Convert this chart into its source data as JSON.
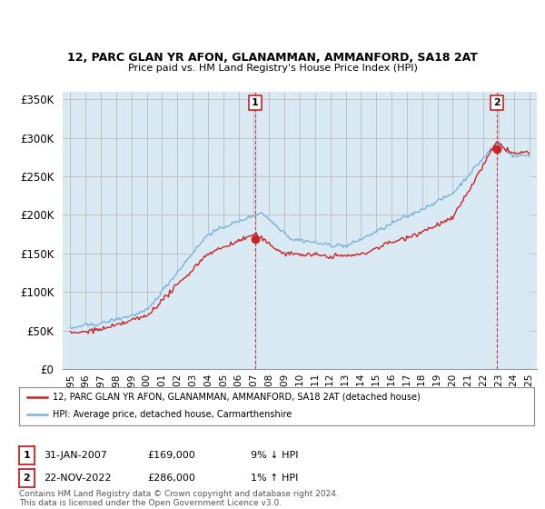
{
  "title1": "12, PARC GLAN YR AFON, GLANAMMAN, AMMANFORD, SA18 2AT",
  "title2": "Price paid vs. HM Land Registry's House Price Index (HPI)",
  "ylim": [
    0,
    360000
  ],
  "yticks": [
    0,
    50000,
    100000,
    150000,
    200000,
    250000,
    300000,
    350000
  ],
  "ytick_labels": [
    "£0",
    "£50K",
    "£100K",
    "£150K",
    "£200K",
    "£250K",
    "£300K",
    "£350K"
  ],
  "xlim": [
    1994.5,
    2025.5
  ],
  "xticks": [
    1995,
    1996,
    1997,
    1998,
    1999,
    2000,
    2001,
    2002,
    2003,
    2004,
    2005,
    2006,
    2007,
    2008,
    2009,
    2010,
    2011,
    2012,
    2013,
    2014,
    2015,
    2016,
    2017,
    2018,
    2019,
    2020,
    2021,
    2022,
    2023,
    2024,
    2025
  ],
  "hpi_color": "#7ab4d8",
  "hpi_fill_color": "#daeaf5",
  "price_color": "#cc2222",
  "vline_color": "#cc2222",
  "background_color": "#ffffff",
  "grid_color": "#bbbbbb",
  "ann1_x": 2007.08,
  "ann1_y": 169000,
  "ann2_x": 2022.9,
  "ann2_y": 286000,
  "legend_line1": "12, PARC GLAN YR AFON, GLANAMMAN, AMMANFORD, SA18 2AT (detached house)",
  "legend_line2": "HPI: Average price, detached house, Carmarthenshire",
  "footer": "Contains HM Land Registry data © Crown copyright and database right 2024.\nThis data is licensed under the Open Government Licence v3.0.",
  "table_row1_date": "31-JAN-2007",
  "table_row1_price": "£169,000",
  "table_row1_hpi": "9% ↓ HPI",
  "table_row2_date": "22-NOV-2022",
  "table_row2_price": "£286,000",
  "table_row2_hpi": "1% ↑ HPI"
}
